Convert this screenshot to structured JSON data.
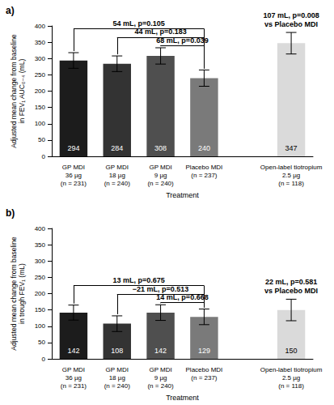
{
  "chart_data": [
    {
      "type": "bar",
      "title": "a)",
      "y_label": "Adjusted mean change from baseline\nin FEV₁ AUC₀₋₄ (mL)",
      "x_label": "Treatment",
      "categories": [
        "GP MDI\n36 µg\n(n = 231)",
        "GP MDI\n18 µg\n(n = 240)",
        "GP MDI\n9 µg\n(n = 240)",
        "Placebo MDI\n(n = 237)",
        null,
        "Open-label tiotropium\n2.5 µg\n(n = 118)"
      ],
      "values": [
        294,
        284,
        308,
        240,
        null,
        347
      ],
      "errors": [
        24,
        24,
        25,
        25,
        null,
        33
      ],
      "colors": [
        "#1c1c1c",
        "#333333",
        "#4f4f4f",
        "#7a7a7a",
        null,
        "#dadada"
      ],
      "ylim": [
        0,
        400
      ],
      "yticks": [
        0,
        50,
        100,
        150,
        200,
        250,
        300,
        350,
        400
      ],
      "grid": false,
      "data_labels": true,
      "annotations": [
        {
          "text": "54 mL, p=0.105",
          "from": 0,
          "to": 3
        },
        {
          "text": "44 mL, p=0.183",
          "from": 1,
          "to": 3
        },
        {
          "text": "68 mL, p=0.039",
          "from": 2,
          "to": 3
        },
        {
          "text": "107 mL, p=0.008\nvs Placebo MDI",
          "at": 5
        }
      ]
    },
    {
      "type": "bar",
      "title": "b)",
      "y_label": "Adjusted mean change from baseline\nin trough FEV₁ (mL)",
      "x_label": "Treatment",
      "categories": [
        "GP MDI\n36 µg\n(n = 231)",
        "GP MDI\n18 µg\n(n = 240)",
        "GP MDI\n9 µg\n(n = 240)",
        "Placebo MDI\n(n = 237)",
        null,
        "Open-label tiotropium\n2.5 µg\n(n = 118)"
      ],
      "values": [
        142,
        108,
        142,
        129,
        null,
        150
      ],
      "errors": [
        23,
        24,
        24,
        24,
        null,
        33
      ],
      "colors": [
        "#1c1c1c",
        "#333333",
        "#4f4f4f",
        "#7a7a7a",
        null,
        "#dadada"
      ],
      "ylim": [
        0,
        400
      ],
      "yticks": [
        0,
        50,
        100,
        150,
        200,
        250,
        300,
        350,
        400
      ],
      "grid": false,
      "data_labels": true,
      "annotations": [
        {
          "text": "13 mL, p=0.675",
          "from": 0,
          "to": 3
        },
        {
          "text": "−21 mL, p=0.513",
          "from": 1,
          "to": 3
        },
        {
          "text": "14 mL, p=0.668",
          "from": 2,
          "to": 3
        },
        {
          "text": "22 mL, p=0.581\nvs Placebo MDI",
          "at": 5
        }
      ]
    }
  ]
}
